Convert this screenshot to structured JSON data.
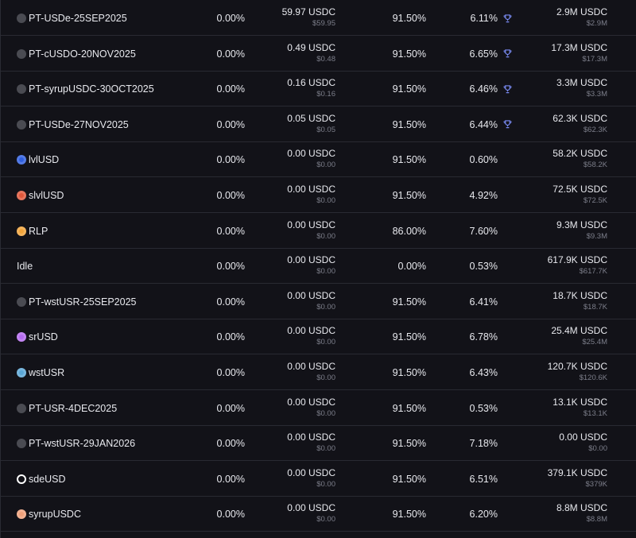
{
  "colors": {
    "background": "#121218",
    "row_border": "#292a32",
    "text_primary": "#e8e9ee",
    "text_secondary": "#7c7e8a",
    "trophy": "#7b8cf5"
  },
  "rows": [
    {
      "name": "PT-USDe-25SEP2025",
      "icon": "pt-dot-icon",
      "icon_color": "#4a4b52",
      "allocation": "0.00%",
      "amount": "59.97 USDC",
      "amount_usd": "$59.95",
      "lltv": "91.50%",
      "apy": "6.11%",
      "rewards_icon": "trophy-icon",
      "liquidity": "2.9M USDC",
      "liquidity_usd": "$2.9M"
    },
    {
      "name": "PT-cUSDO-20NOV2025",
      "icon": "pt-dot-icon",
      "icon_color": "#4a4b52",
      "allocation": "0.00%",
      "amount": "0.49 USDC",
      "amount_usd": "$0.48",
      "lltv": "91.50%",
      "apy": "6.65%",
      "rewards_icon": "trophy-icon",
      "liquidity": "17.3M USDC",
      "liquidity_usd": "$17.3M"
    },
    {
      "name": "PT-syrupUSDC-30OCT2025",
      "icon": "pt-dot-icon",
      "icon_color": "#4a4b52",
      "allocation": "0.00%",
      "amount": "0.16 USDC",
      "amount_usd": "$0.16",
      "lltv": "91.50%",
      "apy": "6.46%",
      "rewards_icon": "trophy-icon",
      "liquidity": "3.3M USDC",
      "liquidity_usd": "$3.3M"
    },
    {
      "name": "PT-USDe-27NOV2025",
      "icon": "pt-dot-icon",
      "icon_color": "#4a4b52",
      "allocation": "0.00%",
      "amount": "0.05 USDC",
      "amount_usd": "$0.05",
      "lltv": "91.50%",
      "apy": "6.44%",
      "rewards_icon": "trophy-icon",
      "liquidity": "62.3K USDC",
      "liquidity_usd": "$62.3K"
    },
    {
      "name": "lvlUSD",
      "icon": "lvlusd-icon",
      "icon_color": "#2f5fe0",
      "allocation": "0.00%",
      "amount": "0.00 USDC",
      "amount_usd": "$0.00",
      "lltv": "91.50%",
      "apy": "0.60%",
      "rewards_icon": "",
      "liquidity": "58.2K USDC",
      "liquidity_usd": "$58.2K"
    },
    {
      "name": "slvlUSD",
      "icon": "slvlusd-icon",
      "icon_color": "#e0573a",
      "allocation": "0.00%",
      "amount": "0.00 USDC",
      "amount_usd": "$0.00",
      "lltv": "91.50%",
      "apy": "4.92%",
      "rewards_icon": "",
      "liquidity": "72.5K USDC",
      "liquidity_usd": "$72.5K"
    },
    {
      "name": "RLP",
      "icon": "rlp-icon",
      "icon_color": "#f2a43a",
      "allocation": "0.00%",
      "amount": "0.00 USDC",
      "amount_usd": "$0.00",
      "lltv": "86.00%",
      "apy": "7.60%",
      "rewards_icon": "",
      "liquidity": "9.3M USDC",
      "liquidity_usd": "$9.3M"
    },
    {
      "name": "Idle",
      "icon": "",
      "icon_color": "",
      "allocation": "0.00%",
      "amount": "0.00 USDC",
      "amount_usd": "$0.00",
      "lltv": "0.00%",
      "apy": "0.53%",
      "rewards_icon": "",
      "liquidity": "617.9K USDC",
      "liquidity_usd": "$617.7K"
    },
    {
      "name": "PT-wstUSR-25SEP2025",
      "icon": "pt-dot-icon",
      "icon_color": "#4a4b52",
      "allocation": "0.00%",
      "amount": "0.00 USDC",
      "amount_usd": "$0.00",
      "lltv": "91.50%",
      "apy": "6.41%",
      "rewards_icon": "",
      "liquidity": "18.7K USDC",
      "liquidity_usd": "$18.7K"
    },
    {
      "name": "srUSD",
      "icon": "srusd-icon",
      "icon_color": "#b56bf0",
      "allocation": "0.00%",
      "amount": "0.00 USDC",
      "amount_usd": "$0.00",
      "lltv": "91.50%",
      "apy": "6.78%",
      "rewards_icon": "",
      "liquidity": "25.4M USDC",
      "liquidity_usd": "$25.4M"
    },
    {
      "name": "wstUSR",
      "icon": "wstusr-icon",
      "icon_color": "#5ba7d6",
      "allocation": "0.00%",
      "amount": "0.00 USDC",
      "amount_usd": "$0.00",
      "lltv": "91.50%",
      "apy": "6.43%",
      "rewards_icon": "",
      "liquidity": "120.7K USDC",
      "liquidity_usd": "$120.6K"
    },
    {
      "name": "PT-USR-4DEC2025",
      "icon": "pt-dot-icon",
      "icon_color": "#4a4b52",
      "allocation": "0.00%",
      "amount": "0.00 USDC",
      "amount_usd": "$0.00",
      "lltv": "91.50%",
      "apy": "0.53%",
      "rewards_icon": "",
      "liquidity": "13.1K USDC",
      "liquidity_usd": "$13.1K"
    },
    {
      "name": "PT-wstUSR-29JAN2026",
      "icon": "pt-dot-icon",
      "icon_color": "#4a4b52",
      "allocation": "0.00%",
      "amount": "0.00 USDC",
      "amount_usd": "$0.00",
      "lltv": "91.50%",
      "apy": "7.18%",
      "rewards_icon": "",
      "liquidity": "0.00 USDC",
      "liquidity_usd": "$0.00"
    },
    {
      "name": "sdeUSD",
      "icon": "sdeusd-icon",
      "icon_color": "#ffffff",
      "allocation": "0.00%",
      "amount": "0.00 USDC",
      "amount_usd": "$0.00",
      "lltv": "91.50%",
      "apy": "6.51%",
      "rewards_icon": "",
      "liquidity": "379.1K USDC",
      "liquidity_usd": "$379K"
    },
    {
      "name": "syrupUSDC",
      "icon": "syrupusdc-icon",
      "icon_color": "#f0a07a",
      "allocation": "0.00%",
      "amount": "0.00 USDC",
      "amount_usd": "$0.00",
      "lltv": "91.50%",
      "apy": "6.20%",
      "rewards_icon": "",
      "liquidity": "8.8M USDC",
      "liquidity_usd": "$8.8M"
    }
  ]
}
